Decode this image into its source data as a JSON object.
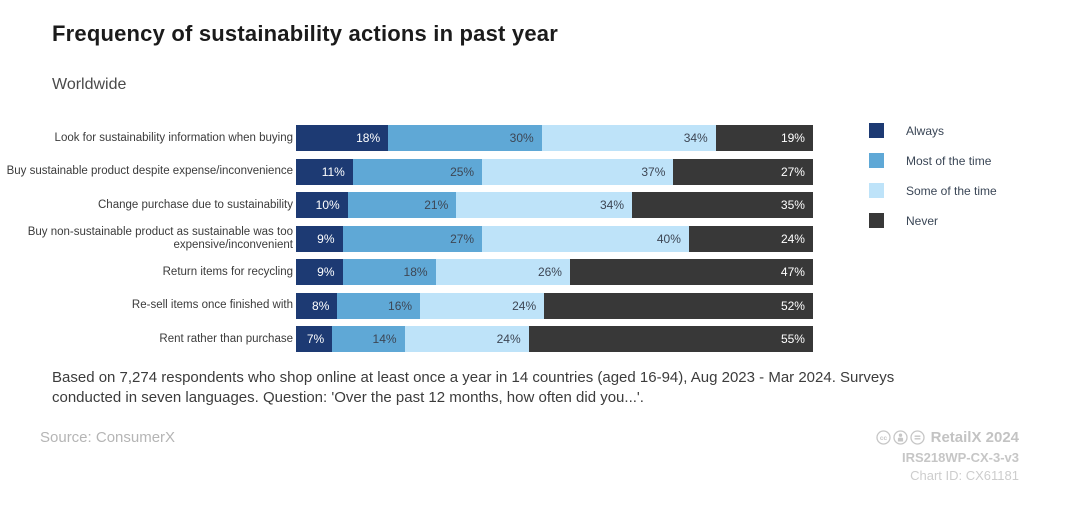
{
  "header": {
    "title": "Frequency of sustainability actions in past year",
    "subtitle": "Worldwide"
  },
  "chart_data": {
    "type": "bar",
    "stacked": true,
    "orientation": "horizontal",
    "title": "Frequency of sustainability actions in past year",
    "subtitle": "Worldwide",
    "categories": [
      "Look for sustainability information when buying",
      "Buy sustainable product despite expense/inconvenience",
      "Change purchase due to sustainability",
      "Buy non-sustainable product as sustainable was too expensive/inconvenient",
      "Return items for recycling",
      "Re-sell items once finished with",
      "Rent rather than purchase"
    ],
    "series": [
      {
        "name": "Always",
        "color": "#1d3a73",
        "label_color": "#ffffff",
        "values": [
          18,
          11,
          10,
          9,
          9,
          8,
          7
        ]
      },
      {
        "name": "Most of the time",
        "color": "#5fa8d6",
        "label_color": "#3d4654",
        "values": [
          30,
          25,
          21,
          27,
          18,
          16,
          14
        ]
      },
      {
        "name": "Some of the time",
        "color": "#bee3f9",
        "label_color": "#3d4654",
        "values": [
          34,
          37,
          34,
          40,
          26,
          24,
          24
        ]
      },
      {
        "name": "Never",
        "color": "#383838",
        "label_color": "#ffffff",
        "values": [
          19,
          27,
          35,
          24,
          47,
          52,
          55
        ]
      }
    ],
    "value_suffix": "%",
    "xlim": [
      0,
      100
    ],
    "grid": false,
    "legend_position": "right"
  },
  "footnote": "Based on 7,274 respondents who shop online at least once a year in 14 countries (aged 16-94), Aug 2023 - Mar 2024. Surveys conducted in seven languages. Question: 'Over the past 12 months, how often did you...'.",
  "source": "Source: ConsumerX",
  "branding": {
    "publisher": "RetailX 2024",
    "reference": "IRS218WP-CX-3-v3",
    "chart_id": "Chart ID: CX61181",
    "license_icons": [
      "cc-icon",
      "by-icon",
      "nd-icon"
    ]
  }
}
